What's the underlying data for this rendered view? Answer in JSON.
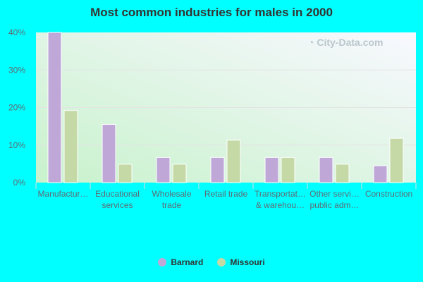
{
  "chart_data": {
    "type": "bar",
    "title": "Most common industries for males in 2000",
    "categories": [
      [
        "Manufactur…"
      ],
      [
        "Educational",
        "services"
      ],
      [
        "Wholesale",
        "trade"
      ],
      [
        "Retail trade"
      ],
      [
        "Transportat…",
        "& warehou…"
      ],
      [
        "Other servi…",
        "public adm…"
      ],
      [
        "Construction"
      ]
    ],
    "series": [
      {
        "name": "Barnard",
        "color": "#bfa8d8",
        "values": [
          40,
          15.5,
          6.7,
          6.7,
          6.7,
          6.7,
          4.5
        ]
      },
      {
        "name": "Missouri",
        "color": "#c4d9a6",
        "values": [
          19.2,
          4.9,
          4.9,
          11.3,
          6.7,
          4.9,
          11.8
        ]
      }
    ],
    "ylim": [
      0,
      40
    ],
    "yticks": [
      "0%",
      "10%",
      "20%",
      "30%",
      "40%"
    ],
    "grid": true,
    "legend": "bottom"
  },
  "watermark": "City-Data.com"
}
